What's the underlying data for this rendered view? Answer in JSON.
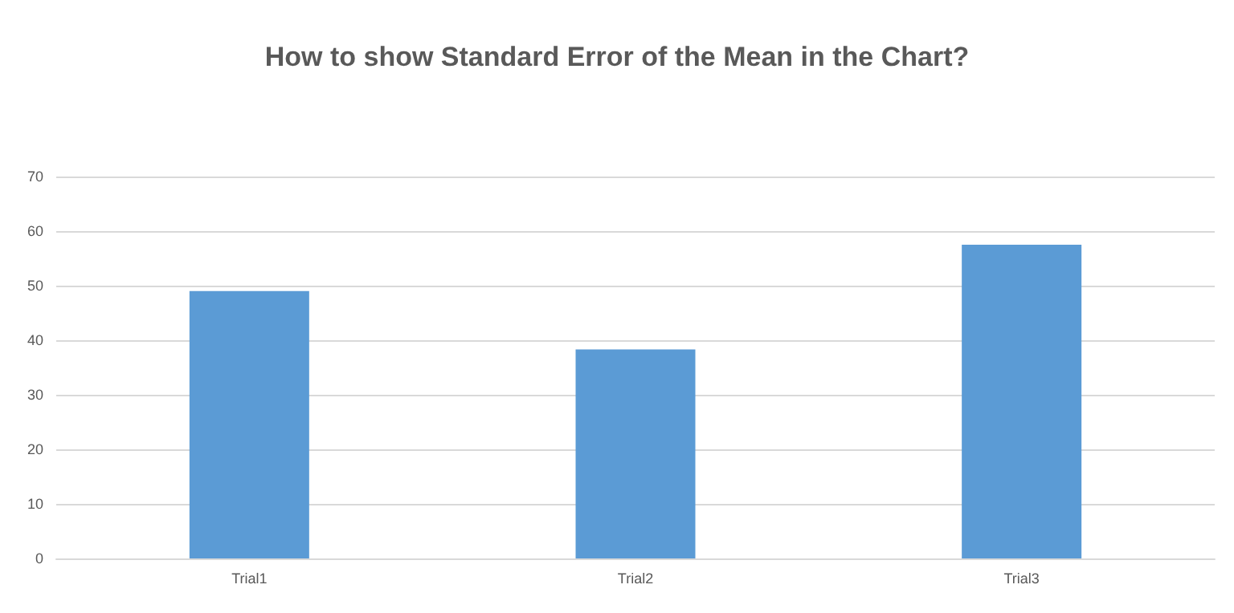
{
  "chart_data": {
    "type": "bar",
    "title": "How to show Standard Error of the Mean in the Chart?",
    "categories": [
      "Trial1",
      "Trial2",
      "Trial3"
    ],
    "values": [
      49.0,
      38.3,
      57.5
    ],
    "color": "#5b9bd5",
    "ylim": [
      0,
      70
    ],
    "yticks": [
      0,
      10,
      20,
      30,
      40,
      50,
      60,
      70
    ],
    "grid": "y"
  }
}
